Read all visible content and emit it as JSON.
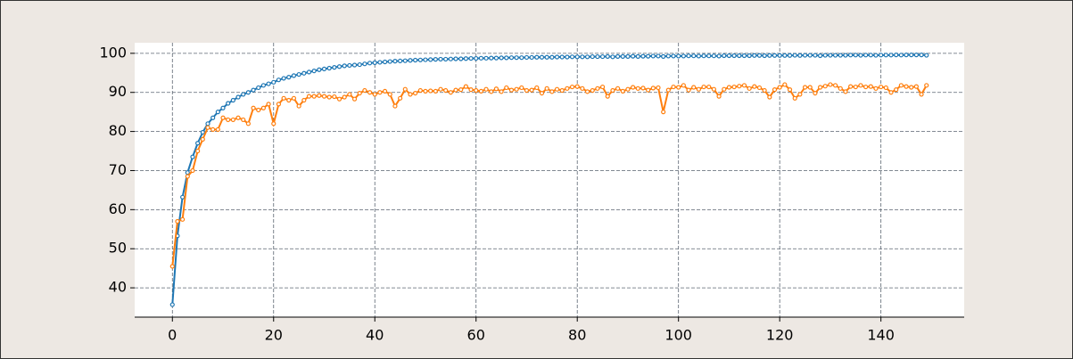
{
  "chart_data": {
    "type": "line",
    "x": [
      0,
      1,
      2,
      3,
      4,
      5,
      6,
      7,
      8,
      9,
      10,
      11,
      12,
      13,
      14,
      15,
      16,
      17,
      18,
      19,
      20,
      21,
      22,
      23,
      24,
      25,
      26,
      27,
      28,
      29,
      30,
      31,
      32,
      33,
      34,
      35,
      36,
      37,
      38,
      39,
      40,
      41,
      42,
      43,
      44,
      45,
      46,
      47,
      48,
      49,
      50,
      51,
      52,
      53,
      54,
      55,
      56,
      57,
      58,
      59,
      60,
      61,
      62,
      63,
      64,
      65,
      66,
      67,
      68,
      69,
      70,
      71,
      72,
      73,
      74,
      75,
      76,
      77,
      78,
      79,
      80,
      81,
      82,
      83,
      84,
      85,
      86,
      87,
      88,
      89,
      90,
      91,
      92,
      93,
      94,
      95,
      96,
      97,
      98,
      99,
      100,
      101,
      102,
      103,
      104,
      105,
      106,
      107,
      108,
      109,
      110,
      111,
      112,
      113,
      114,
      115,
      116,
      117,
      118,
      119,
      120,
      121,
      122,
      123,
      124,
      125,
      126,
      127,
      128,
      129,
      130,
      131,
      132,
      133,
      134,
      135,
      136,
      137,
      138,
      139,
      140,
      141,
      142,
      143,
      144,
      145,
      146,
      147,
      148,
      149
    ],
    "series": [
      {
        "color": "#1f77b4",
        "values": [
          35.7,
          53.3,
          63.2,
          69.5,
          73.5,
          77,
          79.8,
          82,
          83.5,
          85,
          86,
          87.2,
          88,
          88.8,
          89.5,
          90,
          90.6,
          91.2,
          91.8,
          92.2,
          92.6,
          93.2,
          93.6,
          93.9,
          94.3,
          94.6,
          94.9,
          95.2,
          95.5,
          95.8,
          96,
          96.2,
          96.4,
          96.6,
          96.8,
          96.9,
          97,
          97.1,
          97.3,
          97.5,
          97.6,
          97.7,
          97.8,
          97.9,
          98,
          98.05,
          98.1,
          98.2,
          98.25,
          98.3,
          98.35,
          98.4,
          98.45,
          98.5,
          98.5,
          98.55,
          98.6,
          98.6,
          98.65,
          98.7,
          98.7,
          98.75,
          98.75,
          98.8,
          98.8,
          98.85,
          98.85,
          98.9,
          98.9,
          98.9,
          98.95,
          98.95,
          99,
          99,
          99,
          99,
          99.05,
          99.05,
          99.05,
          99.1,
          99.1,
          99.1,
          99.1,
          99.15,
          99.15,
          99.15,
          99.2,
          99.1,
          99.2,
          99.2,
          99.2,
          99.25,
          99.2,
          99.25,
          99.25,
          99.3,
          99.3,
          99.2,
          99.3,
          99.3,
          99.3,
          99.3,
          99.35,
          99.35,
          99.3,
          99.35,
          99.35,
          99.35,
          99.3,
          99.4,
          99.4,
          99.4,
          99.4,
          99.4,
          99.4,
          99.45,
          99.45,
          99.4,
          99.45,
          99.45,
          99.45,
          99.45,
          99.45,
          99.5,
          99.45,
          99.5,
          99.5,
          99.5,
          99.4,
          99.5,
          99.5,
          99.5,
          99.5,
          99.5,
          99.55,
          99.55,
          99.5,
          99.55,
          99.55,
          99.5,
          99.55,
          99.55,
          99.55,
          99.6,
          99.55,
          99.6,
          99.6,
          99.6,
          99.6,
          99.5
        ]
      },
      {
        "color": "#ff7f0e",
        "values": [
          45.5,
          57,
          57.5,
          68.5,
          70,
          75,
          78,
          81,
          80.5,
          80.5,
          83.5,
          83,
          83,
          83.5,
          83,
          82,
          86,
          85.5,
          86,
          87,
          82,
          87,
          88.5,
          88,
          88.5,
          86.5,
          88,
          89,
          89,
          89.2,
          89,
          88.8,
          88.9,
          88.3,
          88.8,
          89.5,
          88.3,
          89.8,
          90.5,
          90,
          89.5,
          90,
          90.3,
          89.5,
          86.5,
          88.5,
          90.8,
          89.5,
          89.8,
          90.5,
          90.3,
          90.4,
          90.3,
          90.8,
          90.5,
          90,
          90.6,
          90.7,
          91.5,
          90.7,
          90.5,
          90.3,
          90.8,
          90.2,
          90.9,
          90.2,
          91.2,
          90.6,
          90.8,
          91.2,
          90.5,
          90.6,
          91.2,
          89.8,
          91,
          90.2,
          90.8,
          90.5,
          91,
          91.4,
          91.5,
          91,
          90.2,
          90.5,
          91,
          91.4,
          89,
          90.5,
          91,
          90.3,
          90.8,
          91.3,
          91,
          91.1,
          90.6,
          91.1,
          91.2,
          85,
          90.6,
          91.4,
          91.3,
          91.8,
          90.6,
          91.3,
          90.8,
          91.4,
          91.4,
          90.8,
          89,
          90.8,
          91.3,
          91.4,
          91.6,
          91.8,
          91,
          91.5,
          91.2,
          90.5,
          88.8,
          90.7,
          91.3,
          92,
          90.7,
          88.5,
          89.5,
          91.3,
          91.3,
          89.8,
          91.3,
          91.6,
          92,
          91.8,
          91,
          90.2,
          91.5,
          91.4,
          91.8,
          91.4,
          91.5,
          91,
          91.4,
          91.2,
          90,
          90.7,
          91.8,
          91.5,
          91.3,
          91.5,
          89.5,
          91.8
        ]
      }
    ],
    "xlim": [
      -7.45,
      156.45
    ],
    "ylim": [
      32.5,
      102.7
    ],
    "xticks": [
      0,
      20,
      40,
      60,
      80,
      100,
      120,
      140
    ],
    "yticks": [
      40,
      50,
      60,
      70,
      80,
      90,
      100
    ],
    "grid": true
  }
}
